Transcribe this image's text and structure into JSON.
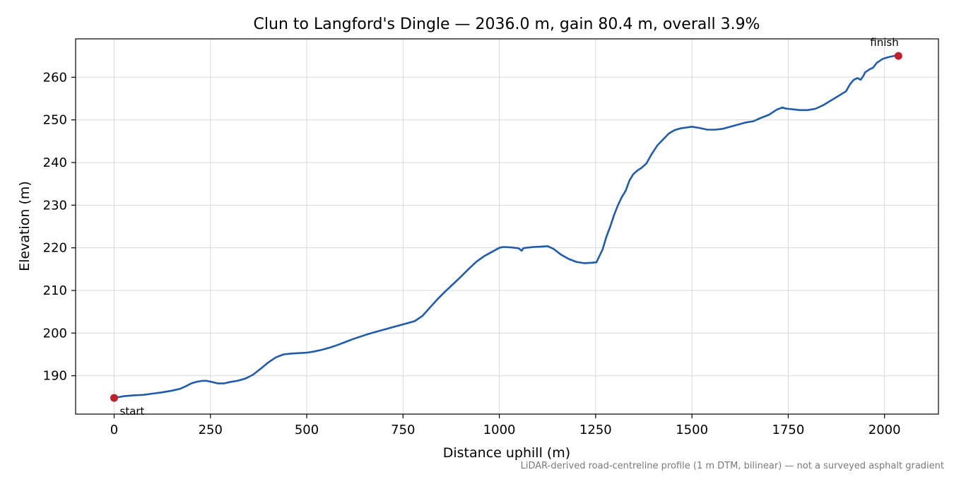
{
  "chart_data": {
    "type": "line",
    "title": "Clun to Langford's Dingle — 2036.0 m, gain 80.4 m, overall 3.9%",
    "xlabel": "Distance uphill (m)",
    "ylabel": "Elevation (m)",
    "xlim": [
      -100,
      2140
    ],
    "ylim": [
      181,
      269
    ],
    "xticks": [
      0,
      250,
      500,
      750,
      1000,
      1250,
      1500,
      1750,
      2000
    ],
    "yticks": [
      190,
      200,
      210,
      220,
      230,
      240,
      250,
      260
    ],
    "grid": true,
    "line_color": "#1f5cb0",
    "marker_color": "#c0202a",
    "series": [
      {
        "x": [
          0,
          25,
          50,
          75,
          100,
          125,
          150,
          170,
          185,
          200,
          215,
          230,
          240,
          255,
          270,
          285,
          300,
          320,
          340,
          360,
          380,
          400,
          420,
          440,
          460,
          480,
          500,
          520,
          540,
          560,
          580,
          600,
          620,
          640,
          660,
          680,
          700,
          720,
          740,
          760,
          780,
          800,
          820,
          840,
          860,
          880,
          900,
          920,
          940,
          960,
          980,
          1000,
          1010,
          1030,
          1050,
          1058,
          1062,
          1068,
          1090,
          1110,
          1125,
          1140,
          1160,
          1180,
          1200,
          1220,
          1240,
          1252,
          1258,
          1268,
          1278,
          1288,
          1298,
          1308,
          1318,
          1328,
          1338,
          1348,
          1358,
          1370,
          1382,
          1395,
          1410,
          1425,
          1440,
          1455,
          1470,
          1485,
          1500,
          1520,
          1540,
          1560,
          1580,
          1600,
          1620,
          1640,
          1660,
          1670,
          1680,
          1700,
          1720,
          1735,
          1742,
          1750,
          1760,
          1780,
          1800,
          1820,
          1840,
          1860,
          1880,
          1900,
          1910,
          1920,
          1930,
          1938,
          1945,
          1950,
          1955,
          1962,
          1970,
          1980,
          1995,
          2010,
          2025,
          2036
        ],
        "y": [
          184.8,
          185.2,
          185.4,
          185.5,
          185.8,
          186.1,
          186.5,
          186.9,
          187.5,
          188.2,
          188.6,
          188.8,
          188.8,
          188.5,
          188.2,
          188.2,
          188.5,
          188.8,
          189.3,
          190.2,
          191.6,
          193.1,
          194.3,
          195.0,
          195.2,
          195.3,
          195.4,
          195.7,
          196.1,
          196.6,
          197.2,
          197.9,
          198.6,
          199.2,
          199.8,
          200.3,
          200.8,
          201.3,
          201.8,
          202.3,
          202.8,
          204.0,
          206.0,
          208.0,
          209.8,
          211.5,
          213.2,
          215.0,
          216.7,
          218.0,
          219.0,
          220.0,
          220.2,
          220.1,
          219.9,
          219.3,
          219.9,
          220.0,
          220.2,
          220.3,
          220.4,
          219.8,
          218.4,
          217.4,
          216.7,
          216.4,
          216.5,
          216.6,
          217.7,
          219.6,
          222.6,
          225.0,
          227.7,
          230.0,
          231.9,
          233.4,
          235.8,
          237.3,
          238.1,
          238.8,
          239.8,
          241.9,
          244.0,
          245.4,
          246.8,
          247.6,
          248.0,
          248.2,
          248.4,
          248.1,
          247.7,
          247.7,
          247.9,
          248.4,
          248.9,
          249.4,
          249.7,
          250.1,
          250.5,
          251.2,
          252.4,
          252.9,
          252.7,
          252.6,
          252.5,
          252.3,
          252.3,
          252.6,
          253.4,
          254.5,
          255.6,
          256.7,
          258.3,
          259.4,
          259.8,
          259.4,
          260.3,
          261.2,
          261.5,
          261.9,
          262.2,
          263.4,
          264.3,
          264.7,
          265.0,
          265.0
        ]
      }
    ],
    "annotations": [
      {
        "text": "start",
        "x": 0,
        "y": 184.8
      },
      {
        "text": "finish",
        "x": 2036,
        "y": 265.0
      }
    ],
    "caption": "LiDAR-derived road-centreline profile (1 m DTM, bilinear) — not a surveyed asphalt gradient"
  }
}
